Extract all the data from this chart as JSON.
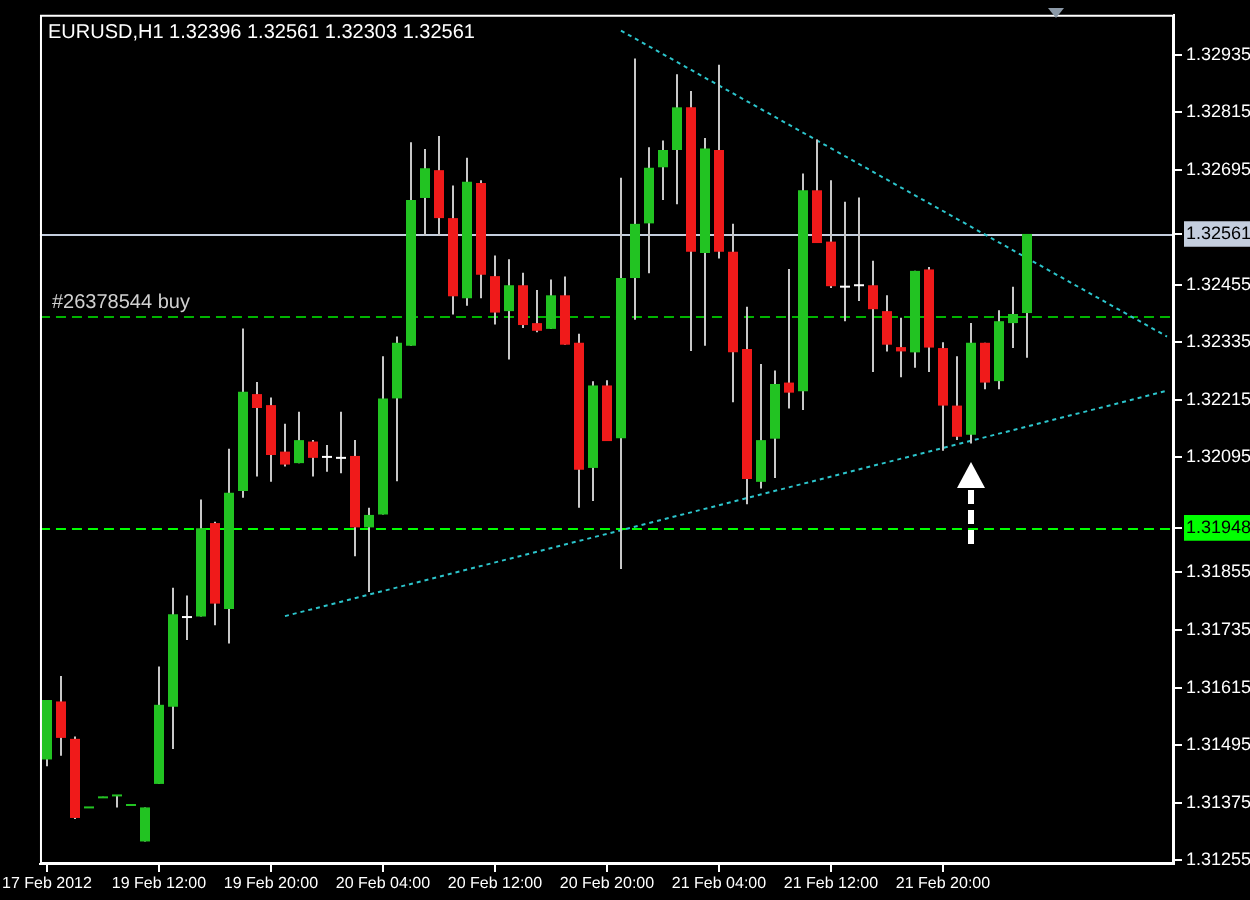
{
  "chart_data": {
    "type": "candlestick",
    "title": "EURUSD,H1 1.32396 1.32561 1.32303 1.32561",
    "categories": [
      "17 Feb 2012",
      null,
      null,
      null,
      null,
      null,
      null,
      null,
      "19 Feb 12:00",
      null,
      null,
      null,
      null,
      null,
      null,
      null,
      "19 Feb 20:00",
      null,
      null,
      null,
      null,
      null,
      null,
      null,
      "20 Feb 04:00",
      null,
      null,
      null,
      null,
      null,
      null,
      null,
      "20 Feb 12:00",
      null,
      null,
      null,
      null,
      null,
      null,
      null,
      "20 Feb 20:00",
      null,
      null,
      null,
      null,
      null,
      null,
      null,
      "21 Feb 04:00",
      null,
      null,
      null,
      null,
      null,
      null,
      null,
      "21 Feb 12:00",
      null,
      null,
      null,
      null,
      null,
      null,
      null,
      "21 Feb 20:00",
      null,
      null,
      null,
      null,
      null,
      null,
      null,
      null,
      null,
      null,
      null,
      null,
      null,
      null,
      null,
      null
    ],
    "ohlc": [
      [
        1.31465,
        1.31589,
        1.31451,
        1.31589
      ],
      [
        1.31586,
        1.31639,
        1.31473,
        1.3151
      ],
      [
        1.31508,
        1.31513,
        1.31341,
        1.31343
      ],
      [
        1.31364,
        1.31366,
        1.31364,
        1.31366
      ],
      [
        1.31385,
        1.31387,
        1.31385,
        1.31387
      ],
      [
        1.31389,
        1.31391,
        1.31365,
        1.31391
      ],
      [
        1.31369,
        1.31371,
        1.31369,
        1.31371
      ],
      [
        1.31294,
        1.31365,
        1.31294,
        1.31365
      ],
      [
        1.31414,
        1.31659,
        1.31414,
        1.31579
      ],
      [
        1.31575,
        1.31823,
        1.31487,
        1.31768
      ],
      [
        1.31762,
        1.31807,
        1.31714,
        1.31762
      ],
      [
        1.31763,
        1.32007,
        1.31763,
        1.31947
      ],
      [
        1.31958,
        1.31961,
        1.31745,
        1.3179
      ],
      [
        1.31779,
        1.32113,
        1.31707,
        1.32021
      ],
      [
        1.32025,
        1.32364,
        1.32011,
        1.32232
      ],
      [
        1.32227,
        1.32252,
        1.32055,
        1.32198
      ],
      [
        1.32204,
        1.3222,
        1.32044,
        1.321
      ],
      [
        1.32107,
        1.32165,
        1.32076,
        1.3208
      ],
      [
        1.32083,
        1.3219,
        1.32083,
        1.32131
      ],
      [
        1.32128,
        1.32131,
        1.32055,
        1.32094
      ],
      [
        1.32096,
        1.32121,
        1.32065,
        1.32096
      ],
      [
        1.32094,
        1.3219,
        1.32062,
        1.32094
      ],
      [
        1.32098,
        1.32131,
        1.31889,
        1.31949
      ],
      [
        1.31949,
        1.3199,
        1.31814,
        1.31975
      ],
      [
        1.31976,
        1.32306,
        1.31976,
        1.32218
      ],
      [
        1.32218,
        1.32347,
        1.32045,
        1.32334
      ],
      [
        1.32328,
        1.32752,
        1.32328,
        1.32632
      ],
      [
        1.32636,
        1.32738,
        1.32557,
        1.32698
      ],
      [
        1.32694,
        1.32765,
        1.32557,
        1.32594
      ],
      [
        1.32594,
        1.32662,
        1.32393,
        1.32431
      ],
      [
        1.32427,
        1.3272,
        1.32411,
        1.3267
      ],
      [
        1.32667,
        1.32673,
        1.32427,
        1.32476
      ],
      [
        1.32473,
        1.32516,
        1.32372,
        1.32397
      ],
      [
        1.324,
        1.32508,
        1.32299,
        1.32454
      ],
      [
        1.32454,
        1.3248,
        1.32365,
        1.32371
      ],
      [
        1.32375,
        1.32444,
        1.32356,
        1.32359
      ],
      [
        1.32363,
        1.32466,
        1.32363,
        1.32433
      ],
      [
        1.32433,
        1.32472,
        1.3233,
        1.3233
      ],
      [
        1.32334,
        1.32353,
        1.3199,
        1.32069
      ],
      [
        1.32073,
        1.32254,
        1.32004,
        1.32245
      ],
      [
        1.32245,
        1.32256,
        1.32129,
        1.32129
      ],
      [
        1.32135,
        1.32678,
        1.31862,
        1.32469
      ],
      [
        1.32469,
        1.32927,
        1.32382,
        1.32582
      ],
      [
        1.32583,
        1.32742,
        1.32479,
        1.32699
      ],
      [
        1.327,
        1.32756,
        1.32632,
        1.32736
      ],
      [
        1.32736,
        1.32894,
        1.32623,
        1.32825
      ],
      [
        1.32825,
        1.32859,
        1.32317,
        1.32524
      ],
      [
        1.32521,
        1.32761,
        1.32328,
        1.32739
      ],
      [
        1.32736,
        1.32914,
        1.3251,
        1.32524
      ],
      [
        1.32524,
        1.32582,
        1.3221,
        1.32314
      ],
      [
        1.32321,
        1.32409,
        1.31997,
        1.3205
      ],
      [
        1.32044,
        1.3229,
        1.3203,
        1.32131
      ],
      [
        1.32134,
        1.32276,
        1.32052,
        1.32248
      ],
      [
        1.32251,
        1.32488,
        1.32197,
        1.3223
      ],
      [
        1.32233,
        1.32687,
        1.32194,
        1.32652
      ],
      [
        1.32652,
        1.32758,
        1.32542,
        1.32542
      ],
      [
        1.32545,
        1.32673,
        1.32448,
        1.32452
      ],
      [
        1.32451,
        1.32628,
        1.32379,
        1.32451
      ],
      [
        1.32454,
        1.32637,
        1.32421,
        1.32454
      ],
      [
        1.32454,
        1.32505,
        1.32273,
        1.32404
      ],
      [
        1.324,
        1.32433,
        1.32316,
        1.3233
      ],
      [
        1.32325,
        1.32386,
        1.32262,
        1.32316
      ],
      [
        1.32314,
        1.32484,
        1.32282,
        1.32484
      ],
      [
        1.32487,
        1.32492,
        1.32273,
        1.32324
      ],
      [
        1.32323,
        1.32335,
        1.32109,
        1.32203
      ],
      [
        1.32203,
        1.32306,
        1.32131,
        1.32138
      ],
      [
        1.32142,
        1.32375,
        1.32124,
        1.32334
      ],
      [
        1.32334,
        1.32334,
        1.32237,
        1.32251
      ],
      [
        1.32254,
        1.32402,
        1.32237,
        1.32379
      ],
      [
        1.32375,
        1.32451,
        1.32323,
        1.32394
      ],
      [
        1.32396,
        1.32561,
        1.32303,
        1.32561
      ],
      null,
      null,
      null,
      null,
      null,
      null,
      null,
      null,
      null,
      null
    ],
    "colors": [
      "#22c322",
      "#f01a1a",
      "#f01a1a",
      "#22c322",
      "#22c322",
      "#22c322",
      "#22c322",
      "#22c322",
      "#22c322",
      "#22c322",
      "#ffffff",
      "#22c322",
      "#f01a1a",
      "#22c322",
      "#22c322",
      "#f01a1a",
      "#f01a1a",
      "#f01a1a",
      "#22c322",
      "#f01a1a",
      "#ffffff",
      "#ffffff",
      "#f01a1a",
      "#22c322",
      "#22c322",
      "#22c322",
      "#22c322",
      "#22c322",
      "#f01a1a",
      "#f01a1a",
      "#22c322",
      "#f01a1a",
      "#f01a1a",
      "#22c322",
      "#f01a1a",
      "#f01a1a",
      "#22c322",
      "#f01a1a",
      "#f01a1a",
      "#22c322",
      "#f01a1a",
      "#22c322",
      "#22c322",
      "#22c322",
      "#22c322",
      "#22c322",
      "#f01a1a",
      "#22c322",
      "#f01a1a",
      "#f01a1a",
      "#f01a1a",
      "#22c322",
      "#22c322",
      "#f01a1a",
      "#22c322",
      "#f01a1a",
      "#f01a1a",
      "#ffffff",
      "#ffffff",
      "#f01a1a",
      "#f01a1a",
      "#f01a1a",
      "#22c322",
      "#f01a1a",
      "#f01a1a",
      "#f01a1a",
      "#22c322",
      "#f01a1a",
      "#22c322",
      "#22c322",
      "#22c322",
      null,
      null,
      null,
      null,
      null,
      null,
      null,
      null,
      null,
      null
    ],
    "series": [
      {
        "type": "line",
        "color": "#2cc5cc",
        "line_style": "dotted",
        "values": [
          null,
          null,
          null,
          null,
          null,
          null,
          null,
          null,
          null,
          null,
          null,
          null,
          null,
          null,
          null,
          null,
          null,
          null,
          null,
          null,
          null,
          null,
          null,
          null,
          null,
          null,
          null,
          null,
          null,
          null,
          null,
          null,
          null,
          null,
          null,
          null,
          null,
          null,
          null,
          null,
          null,
          1.32985,
          null,
          null,
          null,
          null,
          null,
          null,
          null,
          null,
          null,
          null,
          null,
          null,
          null,
          null,
          null,
          null,
          null,
          null,
          null,
          null,
          null,
          null,
          null,
          null,
          null,
          null,
          null,
          null,
          null,
          null,
          null,
          null,
          null,
          null,
          null,
          null,
          null,
          null,
          1.32347
        ]
      },
      {
        "type": "line",
        "color": "#2cc5cc",
        "line_style": "dotted",
        "values": [
          null,
          null,
          null,
          null,
          null,
          null,
          null,
          null,
          null,
          null,
          null,
          null,
          null,
          null,
          null,
          null,
          null,
          1.31764,
          null,
          null,
          null,
          null,
          null,
          null,
          null,
          null,
          null,
          null,
          null,
          null,
          null,
          null,
          null,
          null,
          null,
          null,
          null,
          null,
          null,
          null,
          null,
          null,
          null,
          null,
          null,
          null,
          null,
          null,
          null,
          null,
          null,
          null,
          null,
          null,
          null,
          null,
          null,
          null,
          null,
          null,
          null,
          null,
          null,
          null,
          null,
          null,
          null,
          null,
          null,
          null,
          null,
          null,
          null,
          null,
          null,
          null,
          null,
          null,
          null,
          null,
          1.32234
        ]
      }
    ],
    "ylim": [
      1.31247,
      1.33018
    ],
    "yticks": [
      1.32935,
      1.32815,
      1.32695,
      1.32561,
      1.32455,
      1.32335,
      1.32215,
      1.32095,
      1.31948,
      1.31855,
      1.31735,
      1.31615,
      1.31495,
      1.31375,
      1.31255
    ],
    "ref_lines": [
      {
        "axis": "y",
        "value": 1.32561,
        "color": "#c4cede"
      },
      {
        "axis": "y",
        "value": 1.32388,
        "label": "#26378544 buy",
        "color": "#00b400",
        "line_style": "dashed"
      },
      {
        "axis": "y",
        "value": 1.31948,
        "color": "#00ff00",
        "line_style": "dashed"
      }
    ]
  }
}
